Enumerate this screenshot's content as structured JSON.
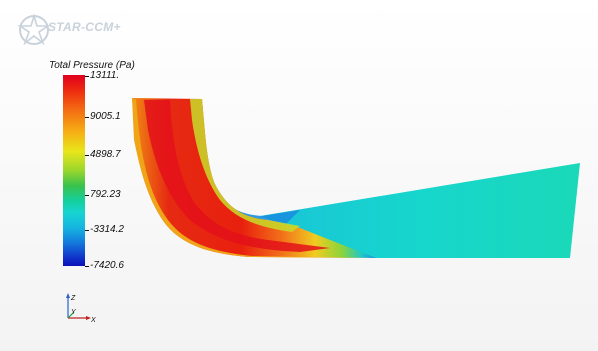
{
  "app": {
    "logo_text": "STAR-CCM+"
  },
  "legend": {
    "title": "Total Pressure (Pa)",
    "ticks": [
      "13111.",
      "9005.1",
      "4898.7",
      "792.23",
      "-3314.2",
      "-7420.6"
    ]
  },
  "axis_triad": {
    "z_label": "Z",
    "y_label": "Y",
    "x_label": "X"
  },
  "colors": {
    "high": "#e0001e",
    "low": "#0a10b8",
    "outlet": "#18d8c8"
  }
}
